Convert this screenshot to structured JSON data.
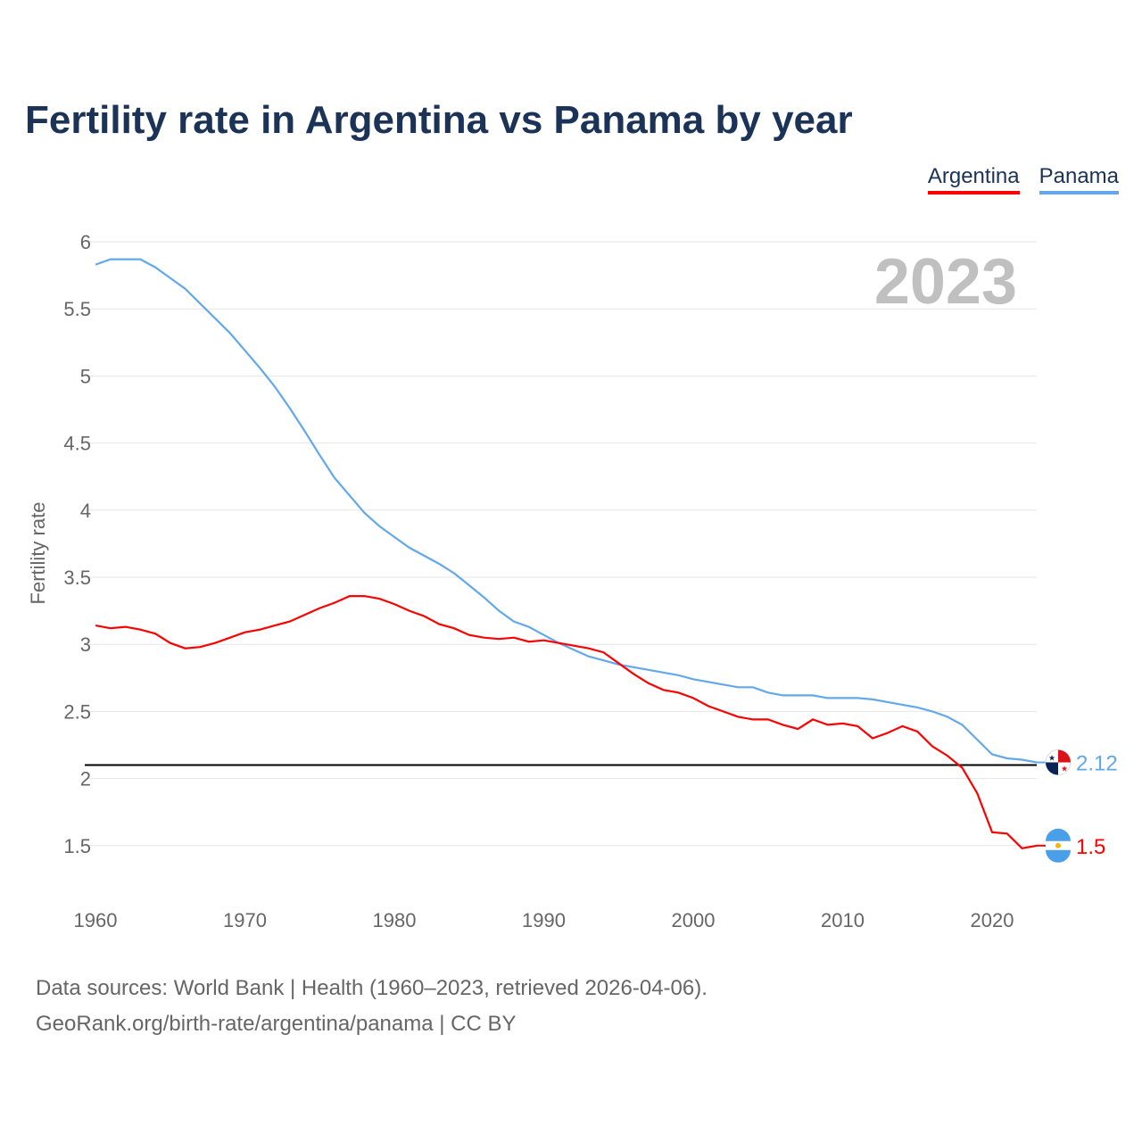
{
  "title": "Fertility rate in Argentina vs Panama by year",
  "source_line1": "Data sources: World Bank | Health (1960–2023, retrieved 2026-04-06).",
  "source_line2": "GeoRank.org/birth-rate/argentina/panama | CC BY",
  "chart_data": {
    "type": "line",
    "title": "Fertility rate in Argentina vs Panama by year",
    "xlabel": "",
    "ylabel": "Fertility rate",
    "year_label": "2023",
    "xlim": [
      1960,
      2023
    ],
    "ylim": [
      1.2,
      6
    ],
    "x_ticks": [
      1960,
      1970,
      1980,
      1990,
      2000,
      2010,
      2020
    ],
    "y_ticks": [
      1.5,
      2,
      2.5,
      3,
      3.5,
      4,
      4.5,
      5,
      5.5,
      6
    ],
    "grid": true,
    "legend_position": "top-right",
    "reference_line": 2.1,
    "x": [
      1960,
      1961,
      1962,
      1963,
      1964,
      1965,
      1966,
      1967,
      1968,
      1969,
      1970,
      1971,
      1972,
      1973,
      1974,
      1975,
      1976,
      1977,
      1978,
      1979,
      1980,
      1981,
      1982,
      1983,
      1984,
      1985,
      1986,
      1987,
      1988,
      1989,
      1990,
      1991,
      1992,
      1993,
      1994,
      1995,
      1996,
      1997,
      1998,
      1999,
      2000,
      2001,
      2002,
      2003,
      2004,
      2005,
      2006,
      2007,
      2008,
      2009,
      2010,
      2011,
      2012,
      2013,
      2014,
      2015,
      2016,
      2017,
      2018,
      2019,
      2020,
      2021,
      2022,
      2023
    ],
    "series": [
      {
        "name": "Argentina",
        "color": "#ff0000",
        "end_label": "1.5",
        "values": [
          3.14,
          3.12,
          3.13,
          3.11,
          3.08,
          3.01,
          2.97,
          2.98,
          3.01,
          3.05,
          3.09,
          3.11,
          3.14,
          3.17,
          3.22,
          3.27,
          3.31,
          3.36,
          3.36,
          3.34,
          3.3,
          3.25,
          3.21,
          3.15,
          3.12,
          3.07,
          3.05,
          3.04,
          3.05,
          3.02,
          3.03,
          3.01,
          2.99,
          2.97,
          2.94,
          2.86,
          2.78,
          2.71,
          2.66,
          2.64,
          2.6,
          2.54,
          2.5,
          2.46,
          2.44,
          2.44,
          2.4,
          2.37,
          2.44,
          2.4,
          2.41,
          2.39,
          2.3,
          2.34,
          2.39,
          2.35,
          2.24,
          2.17,
          2.08,
          1.89,
          1.6,
          1.59,
          1.48,
          1.5
        ]
      },
      {
        "name": "Panama",
        "color": "#62a8ea",
        "end_label": "2.12",
        "values": [
          5.83,
          5.87,
          5.87,
          5.87,
          5.81,
          5.73,
          5.65,
          5.54,
          5.43,
          5.32,
          5.19,
          5.06,
          4.92,
          4.76,
          4.59,
          4.41,
          4.24,
          4.11,
          3.98,
          3.88,
          3.8,
          3.72,
          3.66,
          3.6,
          3.53,
          3.44,
          3.35,
          3.25,
          3.17,
          3.13,
          3.07,
          3.01,
          2.96,
          2.91,
          2.88,
          2.85,
          2.83,
          2.81,
          2.79,
          2.77,
          2.74,
          2.72,
          2.7,
          2.68,
          2.68,
          2.64,
          2.62,
          2.62,
          2.62,
          2.6,
          2.6,
          2.6,
          2.59,
          2.57,
          2.55,
          2.53,
          2.5,
          2.46,
          2.4,
          2.29,
          2.18,
          2.15,
          2.14,
          2.12
        ]
      }
    ]
  }
}
